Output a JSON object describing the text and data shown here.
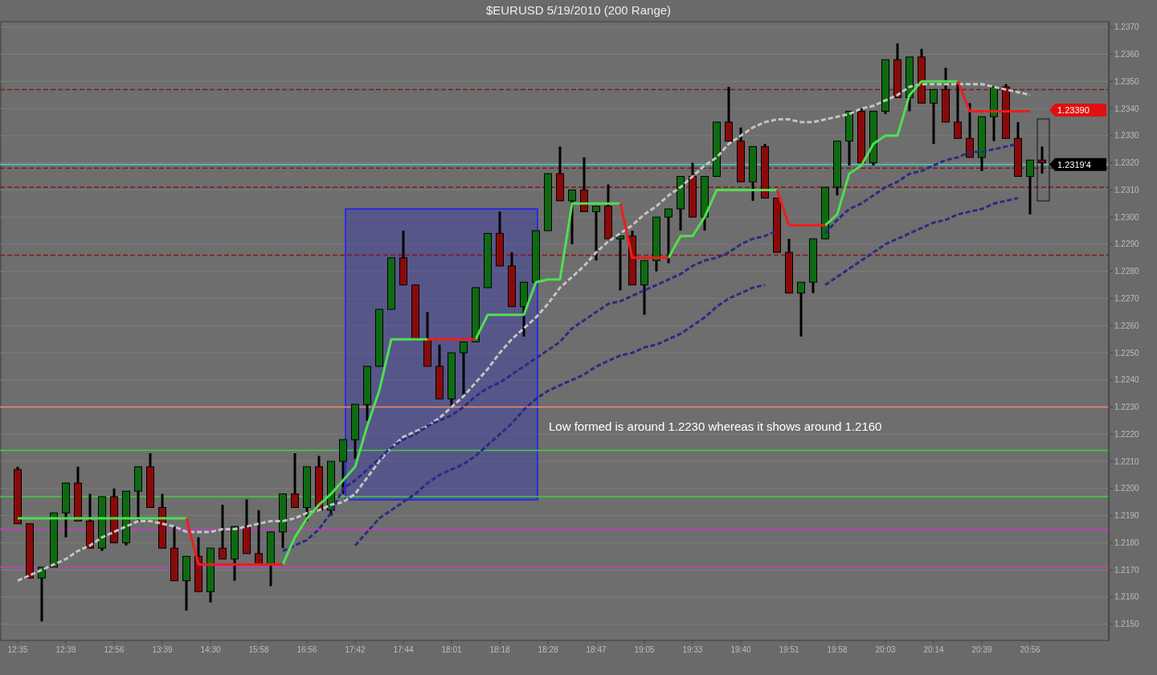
{
  "chart_data": {
    "type": "candlestick",
    "title": "$EURUSD  5/19/2010 (200 Range)",
    "categories": [
      "12:35",
      null,
      null,
      null,
      "12:39",
      null,
      null,
      null,
      "12:56",
      null,
      null,
      null,
      "13:39",
      null,
      null,
      null,
      "14:30",
      null,
      null,
      null,
      "15:58",
      null,
      null,
      null,
      "16:56",
      null,
      null,
      null,
      "17:42",
      null,
      null,
      null,
      "17:44",
      null,
      null,
      null,
      "18:01",
      null,
      null,
      null,
      "18:18",
      null,
      null,
      null,
      "18:28",
      null,
      null,
      null,
      "18:47",
      null,
      null,
      null,
      "19:05",
      null,
      null,
      null,
      "19:33",
      null,
      null,
      null,
      "19:40",
      null,
      null,
      null,
      "19:51",
      null,
      null,
      null,
      "19:58",
      null,
      null,
      null,
      "20:03",
      null,
      null,
      null,
      "20:14",
      null,
      null,
      null,
      "20:39",
      null,
      null,
      null,
      "20:56",
      null
    ],
    "ohlc": [
      [
        1.2207,
        1.2208,
        1.2187,
        1.2187
      ],
      [
        1.2187,
        1.2187,
        1.2167,
        1.2167
      ],
      [
        1.2167,
        1.2171,
        1.2151,
        1.2171
      ],
      [
        1.2171,
        1.2191,
        1.2171,
        1.2191
      ],
      [
        1.2191,
        1.2202,
        1.2182,
        1.2202
      ],
      [
        1.2202,
        1.2208,
        1.2188,
        1.2188
      ],
      [
        1.2188,
        1.2198,
        1.2178,
        1.2178
      ],
      [
        1.2178,
        1.2197,
        1.2177,
        1.2197
      ],
      [
        1.2197,
        1.22,
        1.218,
        1.218
      ],
      [
        1.218,
        1.2199,
        1.2179,
        1.2199
      ],
      [
        1.2199,
        1.2208,
        1.2188,
        1.2208
      ],
      [
        1.2208,
        1.2213,
        1.2193,
        1.2193
      ],
      [
        1.2193,
        1.2198,
        1.2178,
        1.2178
      ],
      [
        1.2178,
        1.2186,
        1.2166,
        1.2166
      ],
      [
        1.2166,
        1.2175,
        1.2155,
        1.2175
      ],
      [
        1.2175,
        1.2182,
        1.2162,
        1.2162
      ],
      [
        1.2162,
        1.2178,
        1.2158,
        1.2178
      ],
      [
        1.2178,
        1.2194,
        1.2174,
        1.2174
      ],
      [
        1.2174,
        1.2186,
        1.2166,
        1.2186
      ],
      [
        1.2186,
        1.2196,
        1.2176,
        1.2176
      ],
      [
        1.2176,
        1.2192,
        1.2172,
        1.2172
      ],
      [
        1.2172,
        1.2184,
        1.2164,
        1.2184
      ],
      [
        1.2184,
        1.2198,
        1.2178,
        1.2198
      ],
      [
        1.2198,
        1.2213,
        1.2193,
        1.2193
      ],
      [
        1.2193,
        1.2208,
        1.2188,
        1.2208
      ],
      [
        1.2208,
        1.2212,
        1.2192,
        1.2192
      ],
      [
        1.2192,
        1.221,
        1.219,
        1.221
      ],
      [
        1.221,
        1.2218,
        1.2198,
        1.2218
      ],
      [
        1.2218,
        1.2231,
        1.2211,
        1.2231
      ],
      [
        1.2231,
        1.2245,
        1.2225,
        1.2245
      ],
      [
        1.2245,
        1.2266,
        1.2245,
        1.2266
      ],
      [
        1.2266,
        1.2285,
        1.2266,
        1.2285
      ],
      [
        1.2285,
        1.2295,
        1.2275,
        1.2275
      ],
      [
        1.2275,
        1.2275,
        1.2255,
        1.2255
      ],
      [
        1.2255,
        1.2265,
        1.2245,
        1.2245
      ],
      [
        1.2245,
        1.2253,
        1.2233,
        1.2233
      ],
      [
        1.2233,
        1.225,
        1.223,
        1.225
      ],
      [
        1.225,
        1.2254,
        1.2234,
        1.2254
      ],
      [
        1.2254,
        1.2274,
        1.2254,
        1.2274
      ],
      [
        1.2274,
        1.2294,
        1.2274,
        1.2294
      ],
      [
        1.2294,
        1.2302,
        1.2282,
        1.2282
      ],
      [
        1.2282,
        1.2287,
        1.2267,
        1.2267
      ],
      [
        1.2267,
        1.2276,
        1.2256,
        1.2276
      ],
      [
        1.2276,
        1.2295,
        1.2276,
        1.2295
      ],
      [
        1.2295,
        1.2316,
        1.2295,
        1.2316
      ],
      [
        1.2316,
        1.2326,
        1.2306,
        1.2306
      ],
      [
        1.2306,
        1.231,
        1.229,
        1.231
      ],
      [
        1.231,
        1.2322,
        1.2302,
        1.2302
      ],
      [
        1.2302,
        1.2304,
        1.2284,
        1.2304
      ],
      [
        1.2304,
        1.2312,
        1.2292,
        1.2292
      ],
      [
        1.2292,
        1.2293,
        1.2273,
        1.2293
      ],
      [
        1.2293,
        1.2295,
        1.2275,
        1.2275
      ],
      [
        1.2275,
        1.2284,
        1.2264,
        1.2284
      ],
      [
        1.2284,
        1.23,
        1.228,
        1.23
      ],
      [
        1.23,
        1.2303,
        1.2283,
        1.2303
      ],
      [
        1.2303,
        1.2315,
        1.2295,
        1.2315
      ],
      [
        1.2315,
        1.232,
        1.23,
        1.23
      ],
      [
        1.23,
        1.2315,
        1.2295,
        1.2315
      ],
      [
        1.2315,
        1.2335,
        1.2315,
        1.2335
      ],
      [
        1.2335,
        1.2348,
        1.2328,
        1.2328
      ],
      [
        1.2328,
        1.2333,
        1.2313,
        1.2313
      ],
      [
        1.2313,
        1.2326,
        1.2306,
        1.2326
      ],
      [
        1.2326,
        1.2327,
        1.2307,
        1.2307
      ],
      [
        1.2307,
        1.2307,
        1.2287,
        1.2287
      ],
      [
        1.2287,
        1.2292,
        1.2272,
        1.2272
      ],
      [
        1.2272,
        1.2276,
        1.2256,
        1.2276
      ],
      [
        1.2276,
        1.2292,
        1.2272,
        1.2292
      ],
      [
        1.2292,
        1.2311,
        1.2292,
        1.2311
      ],
      [
        1.2311,
        1.2328,
        1.2308,
        1.2328
      ],
      [
        1.2328,
        1.2339,
        1.2319,
        1.2339
      ],
      [
        1.2339,
        1.234,
        1.232,
        1.232
      ],
      [
        1.232,
        1.2339,
        1.2319,
        1.2339
      ],
      [
        1.2339,
        1.2358,
        1.2338,
        1.2358
      ],
      [
        1.2358,
        1.2364,
        1.2344,
        1.2344
      ],
      [
        1.2344,
        1.2359,
        1.2339,
        1.2359
      ],
      [
        1.2359,
        1.2362,
        1.2342,
        1.2342
      ],
      [
        1.2342,
        1.2347,
        1.2327,
        1.2347
      ],
      [
        1.2347,
        1.2355,
        1.2335,
        1.2335
      ],
      [
        1.2335,
        1.2349,
        1.2329,
        1.2329
      ],
      [
        1.2329,
        1.2342,
        1.2322,
        1.2322
      ],
      [
        1.2322,
        1.2337,
        1.2317,
        1.2337
      ],
      [
        1.2337,
        1.2348,
        1.2328,
        1.2348
      ],
      [
        1.2348,
        1.2349,
        1.2329,
        1.2329
      ],
      [
        1.2329,
        1.2335,
        1.2315,
        1.2315
      ],
      [
        1.2315,
        1.2321,
        1.2301,
        1.2321
      ],
      [
        1.2321,
        1.2326,
        1.2316,
        1.232
      ]
    ],
    "colors": [
      "#8a0a0a",
      "#8a0a0a",
      "#0e6b12",
      "#0e6b12",
      "#0e6b12",
      "#8a0a0a",
      "#8a0a0a",
      "#0e6b12",
      "#8a0a0a",
      "#0e6b12",
      "#0e6b12",
      "#8a0a0a",
      "#8a0a0a",
      "#8a0a0a",
      "#0e6b12",
      "#8a0a0a",
      "#0e6b12",
      "#8a0a0a",
      "#0e6b12",
      "#8a0a0a",
      "#8a0a0a",
      "#0e6b12",
      "#0e6b12",
      "#8a0a0a",
      "#0e6b12",
      "#8a0a0a",
      "#0e6b12",
      "#0e6b12",
      "#0e6b12",
      "#0e6b12",
      "#0e6b12",
      "#0e6b12",
      "#8a0a0a",
      "#8a0a0a",
      "#8a0a0a",
      "#8a0a0a",
      "#0e6b12",
      "#0e6b12",
      "#0e6b12",
      "#0e6b12",
      "#8a0a0a",
      "#8a0a0a",
      "#0e6b12",
      "#0e6b12",
      "#0e6b12",
      "#8a0a0a",
      "#0e6b12",
      "#8a0a0a",
      "#0e6b12",
      "#8a0a0a",
      "#0e6b12",
      "#8a0a0a",
      "#0e6b12",
      "#0e6b12",
      "#0e6b12",
      "#0e6b12",
      "#8a0a0a",
      "#0e6b12",
      "#0e6b12",
      "#8a0a0a",
      "#8a0a0a",
      "#0e6b12",
      "#8a0a0a",
      "#8a0a0a",
      "#8a0a0a",
      "#0e6b12",
      "#0e6b12",
      "#0e6b12",
      "#0e6b12",
      "#0e6b12",
      "#8a0a0a",
      "#0e6b12",
      "#0e6b12",
      "#8a0a0a",
      "#0e6b12",
      "#8a0a0a",
      "#0e6b12",
      "#8a0a0a",
      "#8a0a0a",
      "#8a0a0a",
      "#0e6b12",
      "#0e6b12",
      "#8a0a0a",
      "#8a0a0a",
      "#0e6b12",
      "#8a0a0a"
    ],
    "series": [
      {
        "type": "line",
        "color": "#c4c4c4",
        "line_style": "dashed",
        "values": [
          1.2166,
          1.2168,
          1.217,
          1.2172,
          1.2174,
          1.2177,
          1.2179,
          1.2182,
          1.2184,
          1.2186,
          1.2188,
          1.2188,
          1.2187,
          1.2186,
          1.2184,
          1.2184,
          1.2184,
          1.2185,
          1.2185,
          1.2186,
          1.2187,
          1.2188,
          1.2188,
          1.2189,
          1.2191,
          1.2192,
          1.2194,
          1.2195,
          1.2198,
          1.2204,
          1.221,
          1.2215,
          1.2219,
          1.2221,
          1.2223,
          1.2226,
          1.223,
          1.2234,
          1.2239,
          1.2244,
          1.225,
          1.2255,
          1.2259,
          1.2263,
          1.2268,
          1.2274,
          1.2278,
          1.2282,
          1.2287,
          1.2291,
          1.2294,
          1.2297,
          1.2301,
          1.2304,
          1.2308,
          1.2311,
          1.2315,
          1.2319,
          1.2322,
          1.2327,
          1.233,
          1.2333,
          1.2335,
          1.2336,
          1.2336,
          1.2335,
          1.2335,
          1.2336,
          1.2337,
          1.2338,
          1.234,
          1.2341,
          1.2343,
          1.2345,
          1.2348,
          1.2349,
          1.2349,
          1.2349,
          1.2349,
          1.2349,
          1.2349,
          1.2348,
          1.2347,
          1.2346,
          1.2345,
          null
        ]
      },
      {
        "type": "line",
        "color": "#2b2b85",
        "line_style": "dashed",
        "values": [
          null,
          null,
          null,
          null,
          null,
          null,
          null,
          null,
          null,
          null,
          null,
          null,
          null,
          null,
          null,
          null,
          null,
          null,
          null,
          null,
          null,
          null,
          1.2177,
          1.2179,
          1.2181,
          1.2185,
          1.2191,
          1.22,
          1.2203,
          1.2207,
          1.2211,
          1.2215,
          1.2218,
          1.222,
          1.2223,
          1.2225,
          1.2227,
          1.223,
          1.2234,
          1.2237,
          1.2239,
          1.2242,
          1.2245,
          1.2248,
          1.2251,
          1.2254,
          1.2259,
          1.2262,
          1.2265,
          1.2268,
          1.2269,
          1.2271,
          1.2273,
          1.2275,
          1.2277,
          1.2279,
          1.2282,
          1.2284,
          1.2285,
          1.2287,
          1.229,
          1.2292,
          1.2293,
          1.2295,
          null,
          null,
          null,
          1.2294,
          1.2299,
          1.2303,
          1.2305,
          1.2308,
          1.2311,
          1.2313,
          1.2316,
          1.2317,
          1.2319,
          1.2321,
          1.2322,
          1.2324,
          1.2324,
          1.2325,
          1.2326,
          1.2327,
          null,
          null
        ]
      },
      {
        "type": "line",
        "color": "#2b2b85",
        "line_style": "dashed",
        "values": [
          null,
          null,
          null,
          null,
          null,
          null,
          null,
          null,
          null,
          null,
          null,
          null,
          null,
          null,
          null,
          null,
          null,
          null,
          null,
          null,
          null,
          null,
          null,
          null,
          null,
          null,
          null,
          null,
          1.2179,
          1.2184,
          1.2189,
          1.2192,
          1.2195,
          1.2198,
          1.2202,
          1.2205,
          1.2207,
          1.2209,
          1.2212,
          1.2216,
          1.222,
          1.2224,
          1.2229,
          1.2233,
          1.2236,
          1.2238,
          1.224,
          1.2242,
          1.2245,
          1.2247,
          1.2249,
          1.225,
          1.2252,
          1.2253,
          1.2255,
          1.2257,
          1.226,
          1.2263,
          1.2267,
          1.227,
          1.2272,
          1.2274,
          1.2275,
          null,
          null,
          null,
          null,
          1.2275,
          1.2278,
          1.2281,
          1.2284,
          1.2287,
          1.229,
          1.2292,
          1.2294,
          1.2296,
          1.2298,
          1.2299,
          1.2301,
          1.2302,
          1.2303,
          1.2305,
          1.2306,
          1.2307,
          null,
          null
        ]
      },
      {
        "type": "line",
        "color": "#4ee04e",
        "line_style": "solid",
        "values": [
          1.2189,
          1.2189,
          1.2189,
          1.2189,
          1.2189,
          1.2189,
          1.2189,
          1.2189,
          1.2189,
          1.2189,
          1.2189,
          1.2189,
          1.2189,
          1.2189,
          1.2189,
          null,
          null,
          null,
          null,
          null,
          null,
          null,
          1.2172,
          1.2182,
          1.2189,
          1.2194,
          1.2198,
          1.2203,
          1.2208,
          1.2223,
          1.2236,
          1.2255,
          1.2255,
          1.2255,
          1.2255,
          null,
          null,
          null,
          1.2255,
          1.2264,
          1.2264,
          1.2264,
          1.2264,
          1.2276,
          1.2277,
          1.2277,
          1.2305,
          1.2305,
          1.2305,
          1.2305,
          1.2305,
          null,
          null,
          null,
          1.2285,
          1.2293,
          1.2293,
          1.23,
          1.231,
          1.231,
          1.231,
          1.231,
          1.231,
          1.231,
          null,
          null,
          null,
          1.2297,
          1.2301,
          1.2316,
          1.2319,
          1.2327,
          1.233,
          1.233,
          1.2345,
          1.235,
          1.235,
          1.235,
          1.235,
          null,
          null,
          null,
          null,
          null,
          null,
          null
        ]
      },
      {
        "type": "line",
        "color": "#f01c1c",
        "line_style": "solid",
        "values": [
          null,
          null,
          null,
          null,
          null,
          null,
          null,
          null,
          null,
          null,
          null,
          null,
          null,
          null,
          1.2189,
          1.2172,
          1.2172,
          1.2172,
          1.2172,
          1.2172,
          1.2172,
          1.2172,
          1.2172,
          null,
          null,
          null,
          null,
          null,
          null,
          null,
          null,
          null,
          null,
          null,
          1.2255,
          1.2255,
          1.2255,
          1.2255,
          1.2255,
          null,
          null,
          null,
          null,
          null,
          null,
          null,
          null,
          null,
          null,
          null,
          1.2305,
          1.2285,
          1.2285,
          1.2285,
          1.2285,
          null,
          null,
          null,
          null,
          null,
          null,
          null,
          null,
          1.231,
          1.2297,
          1.2297,
          1.2297,
          1.2297,
          null,
          null,
          null,
          null,
          null,
          null,
          null,
          null,
          null,
          null,
          1.235,
          1.2339,
          1.2339,
          1.2339,
          1.2339,
          1.2339,
          1.2339,
          null
        ]
      }
    ],
    "ylim": [
      1.2144,
      1.2372
    ],
    "yticks": [
      {
        "value": 1.215,
        "label": "1.2150"
      },
      {
        "value": 1.216,
        "label": "1.2160"
      },
      {
        "value": 1.217,
        "label": "1.2170"
      },
      {
        "value": 1.218,
        "label": "1.2180"
      },
      {
        "value": 1.219,
        "label": "1.2190"
      },
      {
        "value": 1.22,
        "label": "1.2200"
      },
      {
        "value": 1.221,
        "label": "1.2210"
      },
      {
        "value": 1.222,
        "label": "1.2220"
      },
      {
        "value": 1.223,
        "label": "1.2230"
      },
      {
        "value": 1.224,
        "label": "1.2240"
      },
      {
        "value": 1.225,
        "label": "1.2250"
      },
      {
        "value": 1.226,
        "label": "1.2260"
      },
      {
        "value": 1.227,
        "label": "1.2270"
      },
      {
        "value": 1.228,
        "label": "1.2280"
      },
      {
        "value": 1.229,
        "label": "1.2290"
      },
      {
        "value": 1.23,
        "label": "1.2300"
      },
      {
        "value": 1.231,
        "label": "1.2310"
      },
      {
        "value": 1.232,
        "label": "1.2320"
      },
      {
        "value": 1.233,
        "label": "1.2330"
      },
      {
        "value": 1.234,
        "label": "1.2340"
      },
      {
        "value": 1.235,
        "label": "1.2350"
      },
      {
        "value": 1.236,
        "label": "1.2360"
      },
      {
        "value": 1.237,
        "label": "1.2370"
      }
    ],
    "grid": "y",
    "ref_lines": [
      {
        "axis": "y",
        "value": 1.2347,
        "color": "#8a1414",
        "line_style": "dashed"
      },
      {
        "axis": "y",
        "value": 1.2318,
        "color": "#8a1414",
        "line_style": "dashed"
      },
      {
        "axis": "y",
        "value": 1.2311,
        "color": "#8a1414",
        "line_style": "dashed"
      },
      {
        "axis": "y",
        "value": 1.2286,
        "color": "#8a1414",
        "line_style": "dashed"
      },
      {
        "axis": "y",
        "value": 1.2214,
        "color": "#3ed03e",
        "line_style": "solid"
      },
      {
        "axis": "y",
        "value": 1.2197,
        "color": "#3ed03e",
        "line_style": "solid"
      },
      {
        "axis": "y",
        "value": 1.2185,
        "color": "#c040c0",
        "line_style": "solid"
      },
      {
        "axis": "y",
        "value": 1.2171,
        "color": "#c040c0",
        "line_style": "solid"
      },
      {
        "axis": "y",
        "value": 1.223,
        "color": "#f08a6a",
        "line_style": "solid"
      },
      {
        "axis": "y",
        "value": 1.23194,
        "label": "1.2319'4",
        "color": "#40d0d0",
        "line_style": "solid"
      }
    ],
    "annotations": [
      "1.23390",
      "Low formed is around 1.2230 whereas it shows around 1.2160"
    ]
  }
}
